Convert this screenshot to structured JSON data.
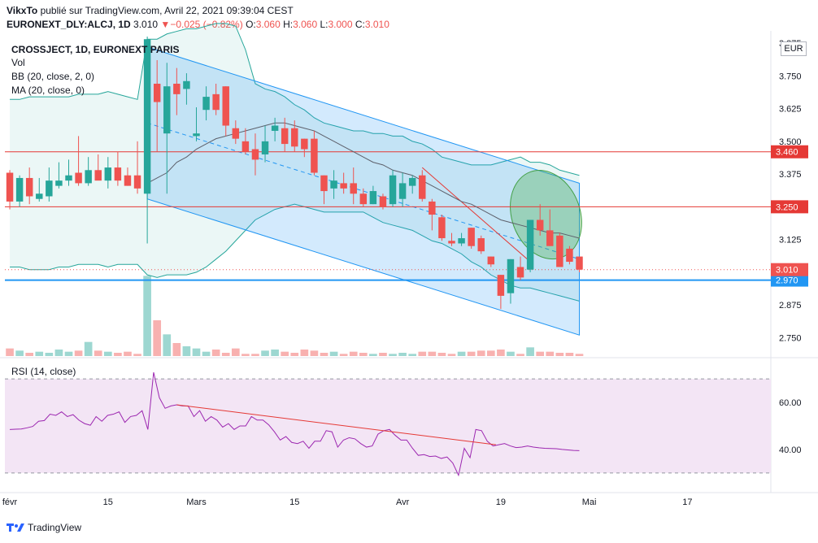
{
  "header": {
    "author": "VikxTo",
    "publish_text": " publié sur TradingView.com, Avril 22, 2021 09:39:04 CEST",
    "symbol": "EURONEXT_DLY:ALCJ, 1D",
    "last": "3.010",
    "change_arrow": "▼",
    "change": "−0.025 (−0.82%)",
    "o_label": "O:",
    "o_value": "3.060",
    "h_label": "H:",
    "h_value": "3.060",
    "l_label": "L:",
    "l_value": "3.000",
    "c_label": "C:",
    "c_value": "3.010"
  },
  "legend": {
    "title": "CROSSJECT, 1D, EURONEXT PARIS",
    "vol": "Vol",
    "bb": "BB (20, close, 2, 0)",
    "ma": "MA (20, close, 0)"
  },
  "currency": "EUR",
  "rsi_label": "RSI (14, close)",
  "footer_brand": "TradingView",
  "colors": {
    "up": "#26a69a",
    "down": "#ef5350",
    "bb_band": "#26a69a",
    "ma": "#5d606b",
    "channel": "#2196f3",
    "support": "#2196f3",
    "resistance": "#e53935",
    "rsi_line": "#9c27b0",
    "rsi_fill": "#f3e5f5"
  },
  "chart_data": [
    {
      "type": "candlestick",
      "title": "CROSSJECT, 1D, EURONEXT PARIS",
      "ylim": [
        2.68,
        3.9
      ],
      "y_ticks": [
        "3.875",
        "3.750",
        "3.625",
        "3.500",
        "3.375",
        "3.125",
        "2.875",
        "2.750"
      ],
      "x_ticks": [
        "févr",
        "15",
        "Mars",
        "15",
        "Avr",
        "19",
        "Mai",
        "17"
      ],
      "x_tick_indices": [
        0,
        10,
        19,
        29,
        40,
        50,
        59,
        69
      ],
      "horizontal_lines": [
        {
          "value": 3.46,
          "label": "3.460",
          "role": "resistance"
        },
        {
          "value": 3.25,
          "label": "3.250",
          "role": "resistance"
        },
        {
          "value": 2.97,
          "label": "2.970",
          "role": "support"
        }
      ],
      "last_price": {
        "value": 3.01,
        "label": "3.010"
      },
      "candles": [
        {
          "o": 3.38,
          "h": 3.39,
          "l": 3.24,
          "c": 3.27
        },
        {
          "o": 3.27,
          "h": 3.37,
          "l": 3.25,
          "c": 3.36
        },
        {
          "o": 3.36,
          "h": 3.4,
          "l": 3.26,
          "c": 3.29
        },
        {
          "o": 3.28,
          "h": 3.36,
          "l": 3.27,
          "c": 3.3
        },
        {
          "o": 3.29,
          "h": 3.4,
          "l": 3.27,
          "c": 3.35
        },
        {
          "o": 3.33,
          "h": 3.42,
          "l": 3.32,
          "c": 3.35
        },
        {
          "o": 3.35,
          "h": 3.43,
          "l": 3.33,
          "c": 3.37
        },
        {
          "o": 3.38,
          "h": 3.52,
          "l": 3.33,
          "c": 3.34
        },
        {
          "o": 3.34,
          "h": 3.44,
          "l": 3.33,
          "c": 3.39
        },
        {
          "o": 3.39,
          "h": 3.45,
          "l": 3.36,
          "c": 3.35
        },
        {
          "o": 3.35,
          "h": 3.44,
          "l": 3.32,
          "c": 3.4
        },
        {
          "o": 3.4,
          "h": 3.46,
          "l": 3.33,
          "c": 3.35
        },
        {
          "o": 3.37,
          "h": 3.4,
          "l": 3.33,
          "c": 3.33
        },
        {
          "o": 3.37,
          "h": 3.5,
          "l": 3.3,
          "c": 3.32
        },
        {
          "o": 3.3,
          "h": 3.9,
          "l": 3.11,
          "c": 3.89
        },
        {
          "o": 3.72,
          "h": 3.81,
          "l": 3.46,
          "c": 3.65
        },
        {
          "o": 3.53,
          "h": 3.8,
          "l": 3.3,
          "c": 3.71
        },
        {
          "o": 3.72,
          "h": 3.78,
          "l": 3.6,
          "c": 3.68
        },
        {
          "o": 3.7,
          "h": 3.76,
          "l": 3.64,
          "c": 3.73
        },
        {
          "o": 3.52,
          "h": 3.63,
          "l": 3.5,
          "c": 3.53
        },
        {
          "o": 3.62,
          "h": 3.71,
          "l": 3.58,
          "c": 3.67
        },
        {
          "o": 3.68,
          "h": 3.72,
          "l": 3.6,
          "c": 3.62
        },
        {
          "o": 3.71,
          "h": 3.71,
          "l": 3.52,
          "c": 3.56
        },
        {
          "o": 3.55,
          "h": 3.58,
          "l": 3.49,
          "c": 3.51
        },
        {
          "o": 3.5,
          "h": 3.55,
          "l": 3.45,
          "c": 3.46
        },
        {
          "o": 3.47,
          "h": 3.53,
          "l": 3.37,
          "c": 3.43
        },
        {
          "o": 3.45,
          "h": 3.56,
          "l": 3.42,
          "c": 3.5
        },
        {
          "o": 3.54,
          "h": 3.59,
          "l": 3.5,
          "c": 3.56
        },
        {
          "o": 3.55,
          "h": 3.59,
          "l": 3.46,
          "c": 3.49
        },
        {
          "o": 3.55,
          "h": 3.58,
          "l": 3.46,
          "c": 3.48
        },
        {
          "o": 3.51,
          "h": 3.51,
          "l": 3.44,
          "c": 3.47
        },
        {
          "o": 3.51,
          "h": 3.54,
          "l": 3.37,
          "c": 3.38
        },
        {
          "o": 3.37,
          "h": 3.37,
          "l": 3.26,
          "c": 3.31
        },
        {
          "o": 3.32,
          "h": 3.39,
          "l": 3.28,
          "c": 3.35
        },
        {
          "o": 3.34,
          "h": 3.38,
          "l": 3.3,
          "c": 3.32
        },
        {
          "o": 3.34,
          "h": 3.4,
          "l": 3.26,
          "c": 3.3
        },
        {
          "o": 3.3,
          "h": 3.32,
          "l": 3.25,
          "c": 3.26
        },
        {
          "o": 3.26,
          "h": 3.33,
          "l": 3.26,
          "c": 3.31
        },
        {
          "o": 3.29,
          "h": 3.3,
          "l": 3.24,
          "c": 3.25
        },
        {
          "o": 3.26,
          "h": 3.39,
          "l": 3.25,
          "c": 3.37
        },
        {
          "o": 3.28,
          "h": 3.38,
          "l": 3.25,
          "c": 3.34
        },
        {
          "o": 3.33,
          "h": 3.37,
          "l": 3.3,
          "c": 3.36
        },
        {
          "o": 3.37,
          "h": 3.39,
          "l": 3.27,
          "c": 3.28
        },
        {
          "o": 3.27,
          "h": 3.28,
          "l": 3.16,
          "c": 3.22
        },
        {
          "o": 3.21,
          "h": 3.22,
          "l": 3.12,
          "c": 3.13
        },
        {
          "o": 3.12,
          "h": 3.15,
          "l": 3.1,
          "c": 3.11
        },
        {
          "o": 3.11,
          "h": 3.15,
          "l": 3.1,
          "c": 3.13
        },
        {
          "o": 3.17,
          "h": 3.17,
          "l": 3.09,
          "c": 3.1
        },
        {
          "o": 3.13,
          "h": 3.14,
          "l": 3.07,
          "c": 3.08
        },
        {
          "o": 3.06,
          "h": 3.06,
          "l": 3.02,
          "c": 3.03
        },
        {
          "o": 2.99,
          "h": 2.99,
          "l": 2.86,
          "c": 2.91
        },
        {
          "o": 2.92,
          "h": 3.05,
          "l": 2.88,
          "c": 3.05
        },
        {
          "o": 3.02,
          "h": 3.06,
          "l": 2.97,
          "c": 2.98
        },
        {
          "o": 3.01,
          "h": 3.2,
          "l": 3.0,
          "c": 3.2
        },
        {
          "o": 3.2,
          "h": 3.26,
          "l": 3.14,
          "c": 3.16
        },
        {
          "o": 3.16,
          "h": 3.24,
          "l": 3.1,
          "c": 3.1
        },
        {
          "o": 3.14,
          "h": 3.15,
          "l": 3.02,
          "c": 3.02
        },
        {
          "o": 3.09,
          "h": 3.1,
          "l": 3.03,
          "c": 3.04
        },
        {
          "o": 3.06,
          "h": 3.06,
          "l": 3.0,
          "c": 3.01
        }
      ],
      "volume": [
        14,
        10,
        6,
        8,
        6,
        12,
        8,
        10,
        26,
        10,
        8,
        6,
        8,
        4,
        148,
        66,
        40,
        24,
        18,
        14,
        8,
        12,
        6,
        14,
        4,
        4,
        10,
        12,
        8,
        6,
        12,
        10,
        6,
        8,
        4,
        8,
        6,
        4,
        6,
        4,
        6,
        4,
        8,
        8,
        6,
        4,
        8,
        8,
        10,
        10,
        12,
        8,
        4,
        16,
        8,
        8,
        6,
        6,
        4
      ],
      "bollinger_upper": [
        3.66,
        3.66,
        3.67,
        3.67,
        3.67,
        3.67,
        3.67,
        3.68,
        3.68,
        3.68,
        3.69,
        3.68,
        3.67,
        3.66,
        3.89,
        3.89,
        3.91,
        3.92,
        3.93,
        3.93,
        3.94,
        3.95,
        3.95,
        3.94,
        3.85,
        3.72,
        3.7,
        3.69,
        3.67,
        3.64,
        3.62,
        3.59,
        3.57,
        3.56,
        3.55,
        3.54,
        3.54,
        3.53,
        3.53,
        3.52,
        3.52,
        3.5,
        3.49,
        3.47,
        3.44,
        3.43,
        3.42,
        3.41,
        3.41,
        3.41,
        3.42,
        3.43,
        3.44,
        3.42,
        3.42,
        3.41,
        3.39,
        3.38,
        3.37
      ],
      "bollinger_lower": [
        3.02,
        3.02,
        3.01,
        3.01,
        3.01,
        3.02,
        3.02,
        3.03,
        3.03,
        3.03,
        3.02,
        3.03,
        3.03,
        3.03,
        2.99,
        2.98,
        2.99,
        2.99,
        2.99,
        3.0,
        3.02,
        3.05,
        3.08,
        3.12,
        3.16,
        3.2,
        3.22,
        3.24,
        3.25,
        3.26,
        3.25,
        3.24,
        3.23,
        3.23,
        3.23,
        3.23,
        3.23,
        3.21,
        3.19,
        3.18,
        3.17,
        3.16,
        3.14,
        3.12,
        3.11,
        3.09,
        3.07,
        3.04,
        3.02,
        2.99,
        2.97,
        2.95,
        2.94,
        2.94,
        2.93,
        2.92,
        2.91,
        2.9,
        2.89
      ],
      "moving_average": [
        null,
        null,
        null,
        null,
        null,
        null,
        null,
        null,
        null,
        null,
        null,
        null,
        null,
        null,
        3.34,
        3.36,
        3.38,
        3.42,
        3.44,
        3.47,
        3.49,
        3.51,
        3.52,
        3.53,
        3.54,
        3.55,
        3.56,
        3.57,
        3.57,
        3.56,
        3.55,
        3.54,
        3.52,
        3.5,
        3.48,
        3.46,
        3.44,
        3.42,
        3.41,
        3.39,
        3.38,
        3.37,
        3.35,
        3.33,
        3.31,
        3.29,
        3.27,
        3.26,
        3.24,
        3.22,
        3.2,
        3.19,
        3.18,
        3.17,
        3.16,
        3.15,
        3.15,
        3.14,
        3.13
      ]
    },
    {
      "type": "line",
      "title": "RSI (14, close)",
      "ylim": [
        22,
        78
      ],
      "y_ticks": [
        "60.00",
        "40.00"
      ],
      "band": [
        30,
        70
      ],
      "values": [
        48.5,
        48.6,
        48.7,
        49.2,
        49.8,
        52.0,
        52.3,
        55.0,
        54.5,
        56.0,
        54.0,
        54.8,
        52.5,
        51.0,
        50.3,
        54.0,
        52.0,
        54.5,
        55.0,
        56.0,
        51.5,
        54.0,
        54.5,
        56.5,
        48.5,
        72.8,
        62.0,
        57.5,
        58.5,
        59.0,
        58.5,
        58.5,
        54.0,
        56.5,
        52.0,
        54.0,
        52.5,
        49.5,
        51.0,
        48.5,
        50.0,
        50.0,
        54.0,
        52.5,
        52.5,
        50.5,
        47.5,
        44.0,
        45.5,
        43.0,
        42.5,
        43.5,
        40.5,
        43.5,
        43.5,
        48.0,
        47.5,
        41.0,
        44.0,
        45.0,
        44.5,
        42.5,
        41.0,
        41.5,
        46.5,
        48.0,
        48.5,
        46.0,
        44.0,
        44.0,
        40.5,
        37.5,
        37.8,
        37.0,
        37.2,
        36.2,
        36.8,
        34.2,
        29.0,
        40.5,
        36.5,
        48.5,
        48.0,
        43.5,
        41.5,
        42.0,
        42.5,
        41.5,
        40.8,
        41.0,
        41.5,
        41.0,
        40.7,
        40.5,
        40.4,
        40.3,
        40.0,
        39.8,
        39.6,
        39.5
      ]
    }
  ]
}
